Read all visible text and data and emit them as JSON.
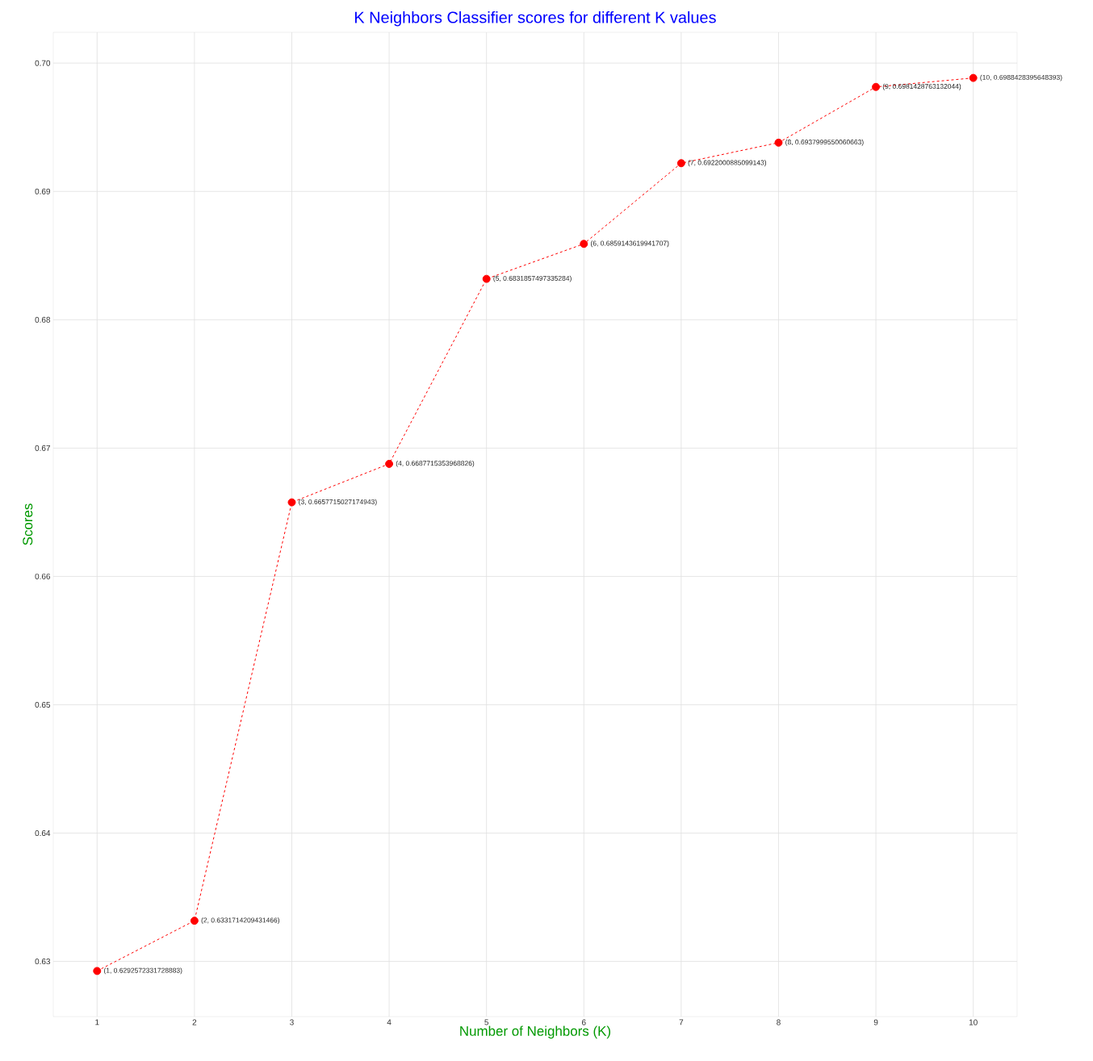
{
  "chart_data": {
    "type": "line",
    "title": "K Neighbors Classifier scores for different K values",
    "xlabel": "Number of Neighbors (K)",
    "ylabel": "Scores",
    "x": [
      1,
      2,
      3,
      4,
      5,
      6,
      7,
      8,
      9,
      10
    ],
    "series": [
      {
        "color": "#ff0000",
        "values": [
          0.6292572331728883,
          0.6331714209431466,
          0.6657715027174943,
          0.6687715353968826,
          0.6831857497335284,
          0.6859143619941707,
          0.6922000885099143,
          0.6937999550060663,
          0.6981428763132044,
          0.6988428395648393
        ],
        "value_labels": [
          "(1, 0.6292572331728883)",
          "(2, 0.6331714209431466)",
          "(3, 0.6657715027174943)",
          "(4, 0.6687715353968826)",
          "(5, 0.6831857497335284)",
          "(6, 0.6859143619941707)",
          "(7, 0.6922000885099143)",
          "(8, 0.6937999550060663)",
          "(9, 0.6981428763132044)",
          "(10, 0.6988428395648393)"
        ]
      }
    ],
    "xlim": [
      0.55,
      10.45
    ],
    "ylim": [
      0.6257,
      0.7024
    ],
    "xticks": [
      1,
      2,
      3,
      4,
      5,
      6,
      7,
      8,
      9,
      10
    ],
    "yticks": [
      {
        "value": 0.63,
        "label": "0.63"
      },
      {
        "value": 0.64,
        "label": "0.64"
      },
      {
        "value": 0.65,
        "label": "0.65"
      },
      {
        "value": 0.66,
        "label": "0.66"
      },
      {
        "value": 0.67,
        "label": "0.67"
      },
      {
        "value": 0.68,
        "label": "0.68"
      },
      {
        "value": 0.69,
        "label": "0.69"
      },
      {
        "value": 0.7,
        "label": "0.70"
      }
    ],
    "grid": true,
    "marker": "circle",
    "line_style": "dashed"
  }
}
